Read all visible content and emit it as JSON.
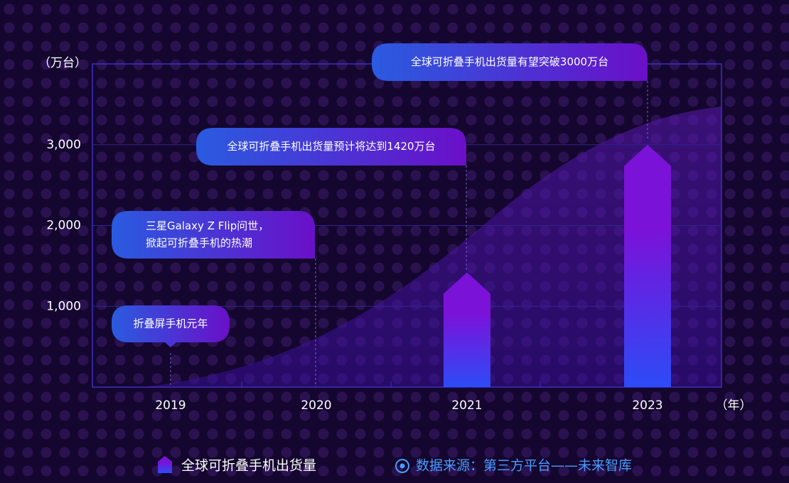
{
  "chart_data": {
    "type": "bar",
    "y_unit_label": "（万台）",
    "x_unit_label": "（年）",
    "categories": [
      "2019",
      "2020",
      "2021",
      "2023"
    ],
    "series": [
      {
        "name": "全球可折叠手机出货量",
        "color": "#7b12d8",
        "values": [
          null,
          null,
          1420,
          3000
        ]
      }
    ],
    "ylim": [
      0,
      4000
    ],
    "yticks": [
      {
        "value": 1000,
        "label": "1,000"
      },
      {
        "value": 2000,
        "label": "2,000"
      },
      {
        "value": 3000,
        "label": "3,000"
      }
    ],
    "grid": true,
    "annotations": [
      {
        "lines": [
          "折叠屏手机元年"
        ]
      },
      {
        "lines": [
          "三星Galaxy Z Flip问世，",
          "掀起可折叠手机的热潮"
        ]
      },
      {
        "lines": [
          "全球可折叠手机出货量预计将达到1420万台"
        ]
      },
      {
        "lines": [
          "全球可折叠手机出货量有望突破3000万台"
        ]
      }
    ],
    "source": "数据来源：第三方平台——未来智库"
  }
}
